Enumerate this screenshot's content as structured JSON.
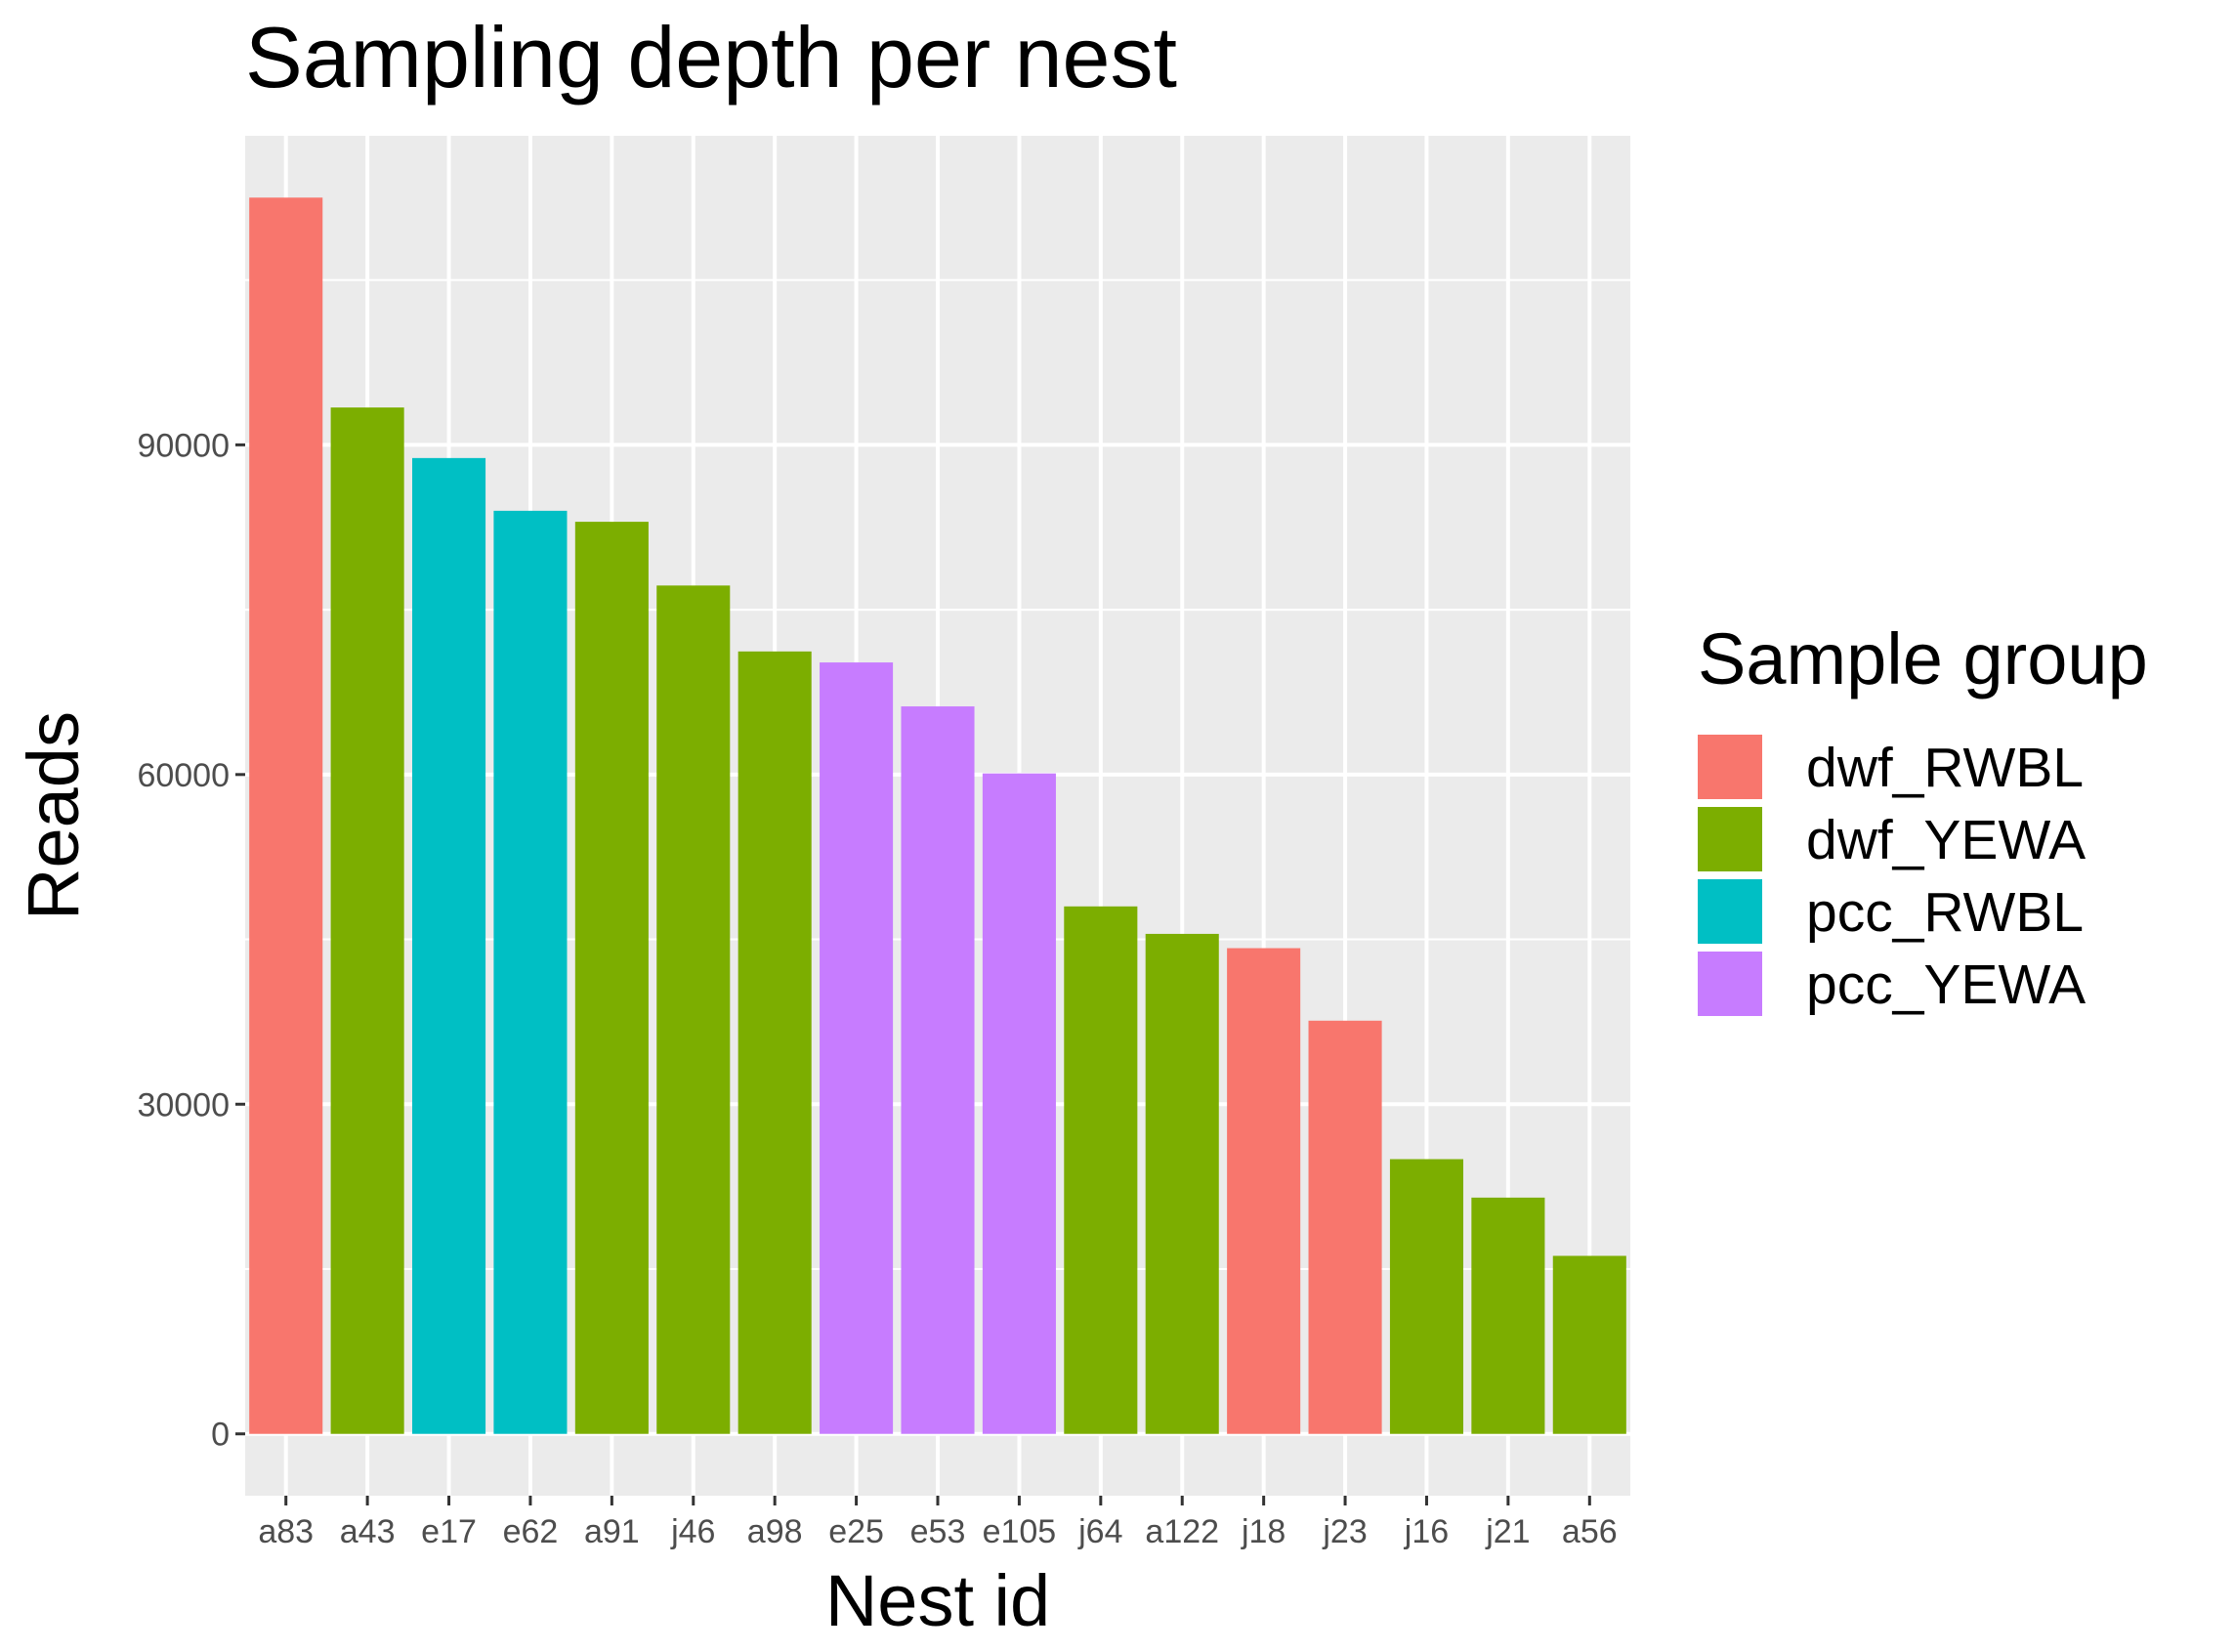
{
  "chart_data": {
    "type": "bar",
    "title": "Sampling depth per nest",
    "xlabel": "Nest id",
    "ylabel": "Reads",
    "categories": [
      "a83",
      "a43",
      "e17",
      "e62",
      "a91",
      "j46",
      "a98",
      "e25",
      "e53",
      "e105",
      "j64",
      "a122",
      "j18",
      "j23",
      "j16",
      "j21",
      "a56"
    ],
    "values": [
      112500,
      93400,
      88800,
      84000,
      83000,
      77200,
      71200,
      70200,
      66200,
      60100,
      48000,
      45500,
      44200,
      37600,
      25000,
      21500,
      16200
    ],
    "groups": [
      "dwf_RWBL",
      "dwf_YEWA",
      "pcc_RWBL",
      "pcc_RWBL",
      "dwf_YEWA",
      "dwf_YEWA",
      "dwf_YEWA",
      "pcc_YEWA",
      "pcc_YEWA",
      "pcc_YEWA",
      "dwf_YEWA",
      "dwf_YEWA",
      "dwf_RWBL",
      "dwf_RWBL",
      "dwf_YEWA",
      "dwf_YEWA",
      "dwf_YEWA"
    ],
    "y_ticks": [
      0,
      30000,
      60000,
      90000
    ],
    "y_tick_labels": [
      "0",
      "30000",
      "60000",
      "90000"
    ],
    "ylim": [
      -5625,
      118125
    ],
    "grid": true,
    "legend": {
      "title": "Sample group",
      "placement": "right",
      "entries": [
        {
          "name": "dwf_RWBL",
          "color": "#F8766D"
        },
        {
          "name": "dwf_YEWA",
          "color": "#7CAE00"
        },
        {
          "name": "pcc_RWBL",
          "color": "#00BFC4"
        },
        {
          "name": "pcc_YEWA",
          "color": "#C77CFF"
        }
      ]
    },
    "panel_background": "#EBEBEB",
    "grid_color": "#FFFFFF"
  }
}
